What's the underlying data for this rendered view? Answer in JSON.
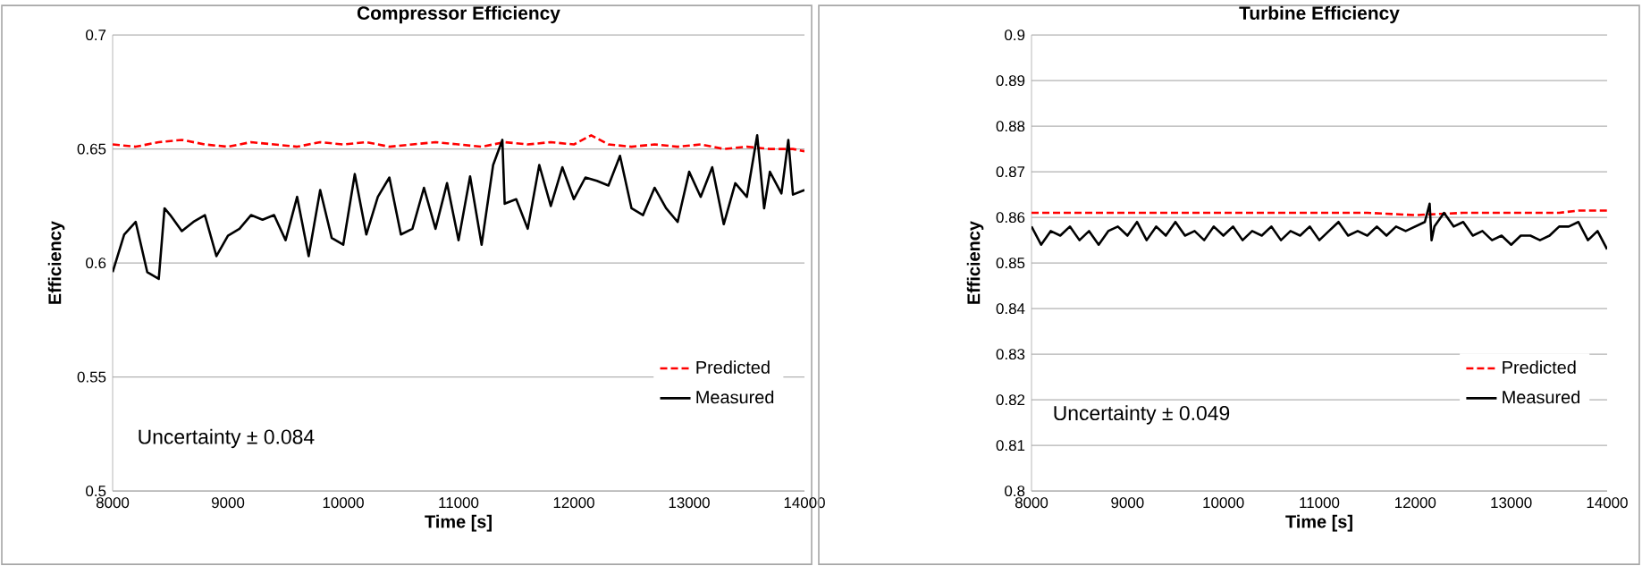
{
  "chart_data": [
    {
      "type": "line",
      "title": "Compressor Efficiency",
      "xlabel": "Time [s]",
      "ylabel": "Efficiency",
      "xlim": [
        8000,
        14000
      ],
      "xticks": [
        8000,
        9000,
        10000,
        11000,
        12000,
        13000,
        14000
      ],
      "ylim": [
        0.5,
        0.7
      ],
      "yticks": [
        0.5,
        0.55,
        0.6,
        0.65,
        0.7
      ],
      "grid": "y",
      "legend": "bottom right",
      "annotations": [
        "Uncertainty ± 0.084"
      ],
      "series": [
        {
          "name": "Predicted",
          "color": "#ff0000",
          "line_style": "dashed",
          "x": [
            8000,
            8200,
            8400,
            8600,
            8800,
            9000,
            9200,
            9400,
            9600,
            9800,
            10000,
            10200,
            10400,
            10600,
            10800,
            11000,
            11200,
            11400,
            11600,
            11800,
            12000,
            12150,
            12300,
            12500,
            12700,
            12900,
            13100,
            13300,
            13500,
            13700,
            13900,
            14000
          ],
          "values": [
            0.652,
            0.651,
            0.653,
            0.654,
            0.652,
            0.651,
            0.653,
            0.652,
            0.651,
            0.653,
            0.652,
            0.653,
            0.651,
            0.652,
            0.653,
            0.652,
            0.651,
            0.653,
            0.652,
            0.653,
            0.652,
            0.656,
            0.652,
            0.651,
            0.652,
            0.651,
            0.652,
            0.65,
            0.651,
            0.65,
            0.65,
            0.649
          ]
        },
        {
          "name": "Measured",
          "color": "#000000",
          "line_style": "solid",
          "x": [
            8000,
            8100,
            8200,
            8300,
            8400,
            8450,
            8500,
            8600,
            8700,
            8800,
            8900,
            9000,
            9100,
            9200,
            9300,
            9400,
            9500,
            9600,
            9700,
            9800,
            9900,
            10000,
            10100,
            10200,
            10300,
            10400,
            10500,
            10600,
            10700,
            10800,
            10900,
            11000,
            11100,
            11200,
            11300,
            11380,
            11400,
            11500,
            11600,
            11700,
            11800,
            11900,
            12000,
            12100,
            12200,
            12300,
            12400,
            12500,
            12600,
            12700,
            12800,
            12900,
            13000,
            13100,
            13200,
            13300,
            13400,
            13500,
            13590,
            13650,
            13700,
            13800,
            13860,
            13900,
            14000
          ],
          "values": [
            0.596,
            0.6125,
            0.618,
            0.596,
            0.593,
            0.624,
            0.621,
            0.614,
            0.618,
            0.621,
            0.603,
            0.612,
            0.615,
            0.621,
            0.619,
            0.621,
            0.61,
            0.629,
            0.603,
            0.632,
            0.611,
            0.608,
            0.639,
            0.6125,
            0.629,
            0.6375,
            0.6125,
            0.615,
            0.633,
            0.615,
            0.635,
            0.61,
            0.638,
            0.608,
            0.643,
            0.654,
            0.626,
            0.628,
            0.615,
            0.643,
            0.625,
            0.642,
            0.628,
            0.6375,
            0.636,
            0.634,
            0.647,
            0.624,
            0.621,
            0.633,
            0.624,
            0.618,
            0.64,
            0.629,
            0.642,
            0.617,
            0.635,
            0.629,
            0.656,
            0.624,
            0.64,
            0.6305,
            0.654,
            0.63,
            0.632
          ]
        }
      ]
    },
    {
      "type": "line",
      "title": "Turbine Efficiency",
      "xlabel": "Time [s]",
      "ylabel": "Efficiency",
      "xlim": [
        8000,
        14000
      ],
      "xticks": [
        8000,
        9000,
        10000,
        11000,
        12000,
        13000,
        14000
      ],
      "ylim": [
        0.8,
        0.9
      ],
      "yticks": [
        0.8,
        0.81,
        0.82,
        0.83,
        0.84,
        0.85,
        0.86,
        0.87,
        0.88,
        0.89,
        0.9
      ],
      "grid": "y",
      "legend": "bottom right",
      "annotations": [
        "Uncertainty ± 0.049"
      ],
      "series": [
        {
          "name": "Predicted",
          "color": "#ff0000",
          "line_style": "dashed",
          "x": [
            8000,
            9000,
            10000,
            11000,
            11500,
            12000,
            12500,
            13000,
            13500,
            13700,
            14000
          ],
          "values": [
            0.861,
            0.861,
            0.861,
            0.861,
            0.861,
            0.8605,
            0.861,
            0.861,
            0.861,
            0.8615,
            0.8615
          ]
        },
        {
          "name": "Measured",
          "color": "#000000",
          "line_style": "solid",
          "x": [
            8000,
            8100,
            8200,
            8300,
            8400,
            8500,
            8600,
            8700,
            8800,
            8900,
            9000,
            9100,
            9200,
            9300,
            9400,
            9500,
            9600,
            9700,
            9800,
            9900,
            10000,
            10100,
            10200,
            10300,
            10400,
            10500,
            10600,
            10700,
            10800,
            10900,
            11000,
            11100,
            11200,
            11300,
            11400,
            11500,
            11600,
            11700,
            11800,
            11900,
            12000,
            12100,
            12150,
            12170,
            12200,
            12300,
            12400,
            12500,
            12600,
            12700,
            12800,
            12900,
            13000,
            13100,
            13200,
            13300,
            13400,
            13500,
            13600,
            13700,
            13800,
            13900,
            14000
          ],
          "values": [
            0.858,
            0.854,
            0.857,
            0.856,
            0.858,
            0.855,
            0.857,
            0.854,
            0.857,
            0.858,
            0.856,
            0.859,
            0.855,
            0.858,
            0.856,
            0.859,
            0.856,
            0.857,
            0.855,
            0.858,
            0.856,
            0.858,
            0.855,
            0.857,
            0.856,
            0.858,
            0.855,
            0.857,
            0.856,
            0.858,
            0.855,
            0.857,
            0.859,
            0.856,
            0.857,
            0.856,
            0.858,
            0.856,
            0.858,
            0.857,
            0.858,
            0.859,
            0.863,
            0.855,
            0.858,
            0.861,
            0.858,
            0.859,
            0.856,
            0.857,
            0.855,
            0.856,
            0.854,
            0.856,
            0.856,
            0.855,
            0.856,
            0.858,
            0.858,
            0.859,
            0.855,
            0.857,
            0.853
          ]
        }
      ]
    }
  ]
}
